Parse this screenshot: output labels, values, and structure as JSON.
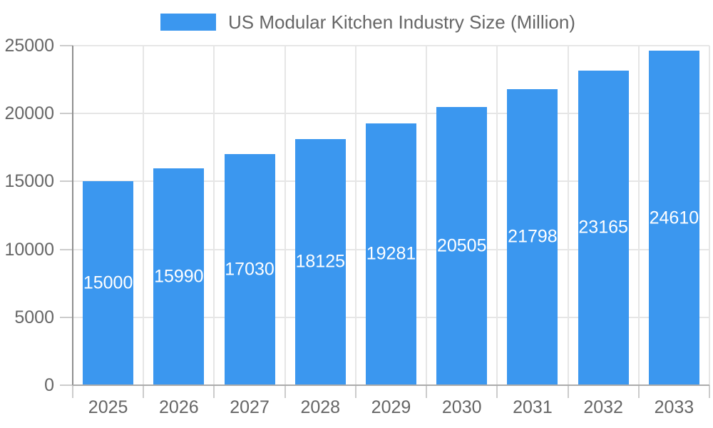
{
  "chart_data": {
    "type": "bar",
    "title": "US Modular Kitchen Industry Size (Million)",
    "legend": {
      "label": "US Modular Kitchen Industry Size (Million)",
      "position": "top"
    },
    "categories": [
      "2025",
      "2026",
      "2027",
      "2028",
      "2029",
      "2030",
      "2031",
      "2032",
      "2033"
    ],
    "series": [
      {
        "name": "US Modular Kitchen Industry Size (Million)",
        "values": [
          15000,
          15990,
          17030,
          18125,
          19281,
          20505,
          21798,
          23165,
          24610
        ]
      }
    ],
    "xlabel": "",
    "ylabel": "",
    "ylim": [
      0,
      25000
    ],
    "ytick_step": 5000,
    "yticks": [
      "0",
      "5000",
      "10000",
      "15000",
      "20000",
      "25000"
    ],
    "grid": true,
    "bar_label_position": "center-inside",
    "colors": {
      "bar": "#3B97EF",
      "gridline": "#E6E6E6",
      "y_axis": "#8F8F8F",
      "x_axis": "#ABABAB",
      "tick_mark": "#CCCCCC",
      "tick_text": "#666666",
      "bar_label_text": "#FFFFFF",
      "background": "#FFFFFF"
    }
  }
}
